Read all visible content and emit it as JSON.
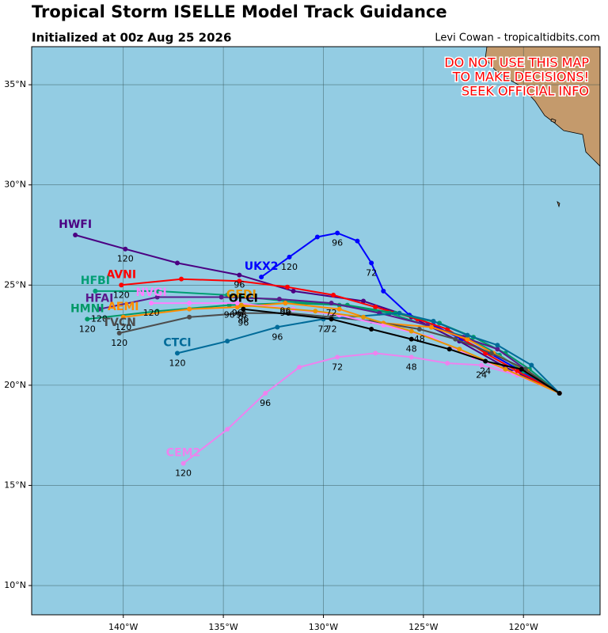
{
  "map": {
    "title": "Tropical Storm ISELLE Model Track Guidance",
    "subtitle": "Initialized at 00z Aug 25 2026",
    "credit": "Levi Cowan - tropicaltidbits.com",
    "warning": [
      "DO NOT USE THIS MAP",
      "TO MAKE DECISIONS!",
      "SEEK OFFICIAL INFO"
    ],
    "xlim": [
      -144.58,
      -116.17
    ],
    "ylim": [
      8.54,
      36.9
    ],
    "xticks": [
      {
        "value": -140,
        "label": "140°W"
      },
      {
        "value": -135,
        "label": "135°W"
      },
      {
        "value": -130,
        "label": "130°W"
      },
      {
        "value": -125,
        "label": "125°W"
      },
      {
        "value": -120,
        "label": "120°W"
      }
    ],
    "yticks": [
      {
        "value": 10,
        "label": "10°N"
      },
      {
        "value": 15,
        "label": "15°N"
      },
      {
        "value": 20,
        "label": "20°N"
      },
      {
        "value": 25,
        "label": "25°N"
      },
      {
        "value": 30,
        "label": "30°N"
      },
      {
        "value": 35,
        "label": "35°N"
      }
    ],
    "grid": true,
    "tracks": [
      {
        "name": "HWFI",
        "color": "#4b0082",
        "points": {
          "lon": [
            -118.2,
            -120.9,
            -123.2,
            -125.6,
            -128.0,
            -131.5,
            -134.2,
            -137.3,
            -139.9,
            -142.4
          ],
          "lat": [
            19.6,
            20.9,
            22.2,
            23.4,
            24.2,
            24.7,
            25.5,
            26.1,
            26.8,
            27.5
          ],
          "hours": [
            null,
            null,
            null,
            null,
            null,
            null,
            96,
            null,
            120,
            null
          ]
        }
      },
      {
        "name": "UKX2",
        "color": "#0000ff",
        "points": {
          "lon": [
            -118.2,
            -120.1,
            -121.7,
            -123.1,
            -124.5,
            -125.7,
            -127.0,
            -127.6,
            -128.3,
            -129.3,
            -130.3,
            -131.7,
            -133.1
          ],
          "lat": [
            19.6,
            20.7,
            21.6,
            22.3,
            23.0,
            23.5,
            24.7,
            26.1,
            27.2,
            27.6,
            27.4,
            26.4,
            25.4
          ],
          "hours": [
            null,
            null,
            null,
            null,
            null,
            null,
            null,
            72,
            null,
            96,
            null,
            120,
            null
          ]
        }
      },
      {
        "name": "AVNI",
        "color": "#ff0000",
        "points": {
          "lon": [
            -118.2,
            -120.3,
            -121.9,
            -123.8,
            -125.3,
            -127.4,
            -129.5,
            -131.8,
            -134.2,
            -137.1,
            -140.1
          ],
          "lat": [
            19.6,
            20.7,
            21.6,
            22.8,
            23.3,
            23.9,
            24.5,
            24.9,
            25.2,
            25.3,
            25.0
          ],
          "hours": [
            null,
            null,
            null,
            null,
            null,
            null,
            null,
            null,
            null,
            null,
            120
          ]
        }
      },
      {
        "name": "HFBI",
        "color": "#009e73",
        "points": {
          "lon": [
            -118.2,
            -120.0,
            -121.2,
            -122.8,
            -124.6,
            -126.7,
            -129.2,
            -131.9,
            -134.8,
            -138.3,
            -141.4
          ],
          "lat": [
            19.6,
            20.7,
            21.5,
            22.4,
            22.9,
            23.6,
            24.0,
            24.2,
            24.5,
            24.7,
            24.7
          ],
          "hours": [
            null,
            null,
            null,
            null,
            null,
            null,
            null,
            96,
            null,
            null,
            null
          ]
        }
      },
      {
        "name": "HMNI",
        "color": "#009966",
        "points": {
          "lon": [
            -118.2,
            -119.7,
            -120.9,
            -122.5,
            -124.2,
            -126.4,
            -128.8,
            -131.9,
            -134.7,
            -138.3,
            -141.8
          ],
          "lat": [
            19.6,
            20.8,
            21.6,
            22.4,
            23.1,
            23.6,
            24.0,
            24.1,
            24.0,
            23.7,
            23.3
          ],
          "hours": [
            null,
            null,
            null,
            null,
            null,
            null,
            null,
            null,
            96,
            null,
            120
          ]
        }
      },
      {
        "name": "HFAI",
        "color": "#5a1a8c",
        "points": {
          "lon": [
            -118.2,
            -119.9,
            -121.3,
            -123.0,
            -124.8,
            -127.2,
            -129.6,
            -132.2,
            -135.1,
            -138.3,
            -141.2
          ],
          "lat": [
            19.6,
            20.8,
            21.8,
            22.4,
            23.0,
            23.6,
            24.1,
            24.3,
            24.4,
            24.4,
            23.8
          ],
          "hours": [
            null,
            null,
            null,
            null,
            null,
            null,
            72,
            null,
            null,
            null,
            120
          ]
        }
      },
      {
        "name": "AEMI",
        "color": "#ff8c00",
        "points": {
          "lon": [
            -118.2,
            -119.8,
            -121.5,
            -122.8,
            -124.6,
            -127.0,
            -129.2,
            -131.9,
            -134.3,
            -136.7,
            -140.0
          ],
          "lat": [
            19.6,
            20.7,
            21.6,
            22.3,
            22.9,
            23.1,
            23.8,
            24.1,
            23.9,
            23.8,
            23.4
          ],
          "hours": [
            null,
            null,
            null,
            null,
            null,
            null,
            null,
            96,
            null,
            null,
            120
          ]
        }
      },
      {
        "name": "TVCN",
        "color": "#4d4d4d",
        "points": {
          "lon": [
            -118.2,
            -119.9,
            -121.6,
            -123.4,
            -125.2,
            -127.6,
            -129.6,
            -131.7,
            -134.0,
            -136.7,
            -140.2
          ],
          "lat": [
            19.6,
            20.8,
            21.6,
            22.3,
            22.8,
            23.2,
            23.4,
            23.6,
            23.6,
            23.4,
            22.6
          ],
          "hours": [
            null,
            null,
            null,
            null,
            48,
            null,
            null,
            null,
            96,
            null,
            120
          ]
        }
      },
      {
        "name": "CTCI",
        "color": "#006b99",
        "points": {
          "lon": [
            -118.2,
            -119.6,
            -121.3,
            -122.8,
            -124.5,
            -126.2,
            -130.0,
            -132.3,
            -134.8,
            -137.3
          ],
          "lat": [
            19.6,
            21.0,
            22.0,
            22.5,
            23.2,
            23.6,
            23.3,
            22.9,
            22.2,
            21.6
          ],
          "hours": [
            null,
            null,
            null,
            null,
            null,
            null,
            72,
            96,
            null,
            120
          ]
        }
      },
      {
        "name": "CEM2",
        "color": "#ee82ee",
        "points": {
          "lon": [
            -118.2,
            -120.3,
            -122.1,
            -123.8,
            -125.6,
            -127.4,
            -129.3,
            -131.2,
            -132.9,
            -134.8,
            -137.0
          ],
          "lat": [
            19.6,
            20.5,
            21.0,
            21.1,
            21.4,
            21.6,
            21.4,
            20.9,
            19.6,
            17.8,
            16.1
          ],
          "hours": [
            null,
            null,
            24,
            null,
            48,
            null,
            72,
            null,
            96,
            null,
            120
          ]
        }
      },
      {
        "name": "NVGI",
        "color": "#ff80ff",
        "points": {
          "lon": [
            -118.2,
            -120.5,
            -122.5,
            -124.6,
            -127.0,
            -129.2,
            -131.5,
            -134.3,
            -136.7,
            -138.6
          ],
          "lat": [
            19.6,
            20.6,
            21.4,
            22.4,
            23.0,
            23.5,
            23.8,
            24.1,
            24.1,
            24.1
          ],
          "hours": [
            null,
            null,
            null,
            null,
            null,
            null,
            null,
            96,
            null,
            120
          ]
        }
      },
      {
        "name": "GFDI",
        "color": "#e69500",
        "points": {
          "lon": [
            -118.2,
            -120.9,
            -123.2,
            -125.6,
            -128.0,
            -130.4,
            -134.1
          ],
          "lat": [
            19.6,
            20.8,
            21.8,
            22.7,
            23.4,
            23.7,
            24.0
          ],
          "hours": [
            null,
            null,
            null,
            null,
            null,
            null,
            96
          ]
        }
      },
      {
        "name": "OFCI",
        "color": "#000000",
        "points": {
          "lon": [
            -118.2,
            -120.1,
            -121.9,
            -123.7,
            -125.6,
            -127.6,
            -129.6,
            -134.0
          ],
          "lat": [
            19.6,
            20.8,
            21.2,
            21.8,
            22.3,
            22.8,
            23.3,
            23.8
          ],
          "hours": [
            null,
            null,
            24,
            null,
            48,
            null,
            72,
            96
          ]
        }
      }
    ]
  }
}
